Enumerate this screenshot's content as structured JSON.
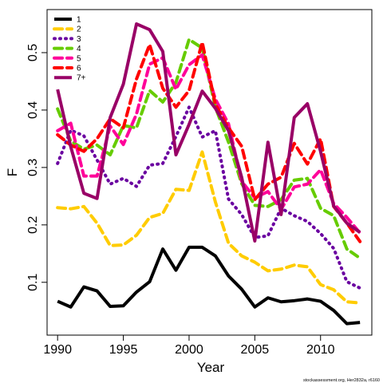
{
  "chart_data": {
    "type": "line",
    "xlabel": "Year",
    "ylabel": "F",
    "xlim": [
      1989.2,
      2013.9
    ],
    "ylim": [
      0.008,
      0.575
    ],
    "xticks": [
      1990,
      1995,
      2000,
      2005,
      2010
    ],
    "yticks": [
      0.1,
      0.2,
      0.3,
      0.4,
      0.5
    ],
    "legend_position": "top-left",
    "credit": "stockassessment.org, Her2832a, r6160",
    "x": [
      1990,
      1991,
      1992,
      1993,
      1994,
      1995,
      1996,
      1997,
      1998,
      1999,
      2000,
      2001,
      2002,
      2003,
      2004,
      2005,
      2006,
      2007,
      2008,
      2009,
      2010,
      2011,
      2012,
      2013
    ],
    "series": [
      {
        "name": "1",
        "color": "#000000",
        "dash": "solid",
        "values": [
          0.067,
          0.057,
          0.092,
          0.085,
          0.058,
          0.059,
          0.083,
          0.101,
          0.158,
          0.121,
          0.161,
          0.161,
          0.146,
          0.111,
          0.088,
          0.057,
          0.073,
          0.066,
          0.068,
          0.071,
          0.067,
          0.051,
          0.028,
          0.03
        ]
      },
      {
        "name": "2",
        "color": "#FFCC00",
        "dash": "dashed",
        "values": [
          0.23,
          0.228,
          0.232,
          0.203,
          0.164,
          0.165,
          0.182,
          0.213,
          0.22,
          0.262,
          0.26,
          0.327,
          0.24,
          0.168,
          0.146,
          0.135,
          0.12,
          0.123,
          0.13,
          0.127,
          0.096,
          0.087,
          0.066,
          0.064
        ]
      },
      {
        "name": "3",
        "color": "#6A00A0",
        "dash": "dotted",
        "values": [
          0.307,
          0.365,
          0.355,
          0.313,
          0.271,
          0.281,
          0.267,
          0.304,
          0.307,
          0.354,
          0.405,
          0.353,
          0.364,
          0.245,
          0.218,
          0.178,
          0.181,
          0.229,
          0.216,
          0.206,
          0.185,
          0.159,
          0.101,
          0.09
        ]
      },
      {
        "name": "4",
        "color": "#66CC00",
        "dash": "dashed",
        "values": [
          0.402,
          0.346,
          0.332,
          0.339,
          0.322,
          0.373,
          0.369,
          0.434,
          0.414,
          0.448,
          0.523,
          0.508,
          0.405,
          0.344,
          0.272,
          0.234,
          0.232,
          0.244,
          0.278,
          0.281,
          0.229,
          0.216,
          0.158,
          0.142
        ]
      },
      {
        "name": "5",
        "color": "#FF0099",
        "dash": "dashed",
        "values": [
          0.364,
          0.377,
          0.285,
          0.285,
          0.372,
          0.34,
          0.393,
          0.48,
          0.491,
          0.436,
          0.479,
          0.496,
          0.419,
          0.376,
          0.276,
          0.247,
          0.258,
          0.227,
          0.266,
          0.271,
          0.296,
          0.237,
          0.213,
          0.186
        ]
      },
      {
        "name": "6",
        "color": "#FF0000",
        "dash": "dashed",
        "values": [
          0.357,
          0.339,
          0.328,
          0.35,
          0.385,
          0.369,
          0.454,
          0.514,
          0.438,
          0.405,
          0.434,
          0.518,
          0.41,
          0.369,
          0.337,
          0.244,
          0.271,
          0.283,
          0.342,
          0.306,
          0.35,
          0.232,
          0.203,
          0.171
        ]
      },
      {
        "name": "7+",
        "color": "#990066",
        "dash": "solid",
        "values": [
          0.436,
          0.336,
          0.255,
          0.246,
          0.387,
          0.445,
          0.55,
          0.54,
          0.502,
          0.322,
          0.375,
          0.433,
          0.403,
          0.364,
          0.283,
          0.172,
          0.344,
          0.218,
          0.387,
          0.411,
          0.328,
          0.233,
          0.203,
          0.187
        ]
      }
    ]
  }
}
